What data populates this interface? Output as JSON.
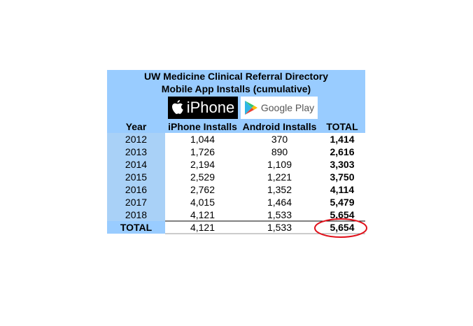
{
  "title": [
    "UW Medicine Clinical Referral Directory",
    "Mobile App Installs (cumulative)"
  ],
  "logos": {
    "iphone": "iPhone",
    "google_play": "Google Play"
  },
  "table": {
    "header": [
      "Year",
      "iPhone Installs",
      "Android Installs",
      "TOTAL"
    ],
    "rows": [
      [
        "2012",
        "1,044",
        "370",
        "1,414"
      ],
      [
        "2013",
        "1,726",
        "890",
        "2,616"
      ],
      [
        "2014",
        "2,194",
        "1,109",
        "3,303"
      ],
      [
        "2015",
        "2,529",
        "1,221",
        "3,750"
      ],
      [
        "2016",
        "2,762",
        "1,352",
        "4,114"
      ],
      [
        "2017",
        "4,015",
        "1,464",
        "5,479"
      ],
      [
        "2018",
        "4,121",
        "1,533",
        "5,654"
      ]
    ],
    "total": [
      "TOTAL",
      "4,121",
      "1,533",
      "5,654"
    ]
  }
}
